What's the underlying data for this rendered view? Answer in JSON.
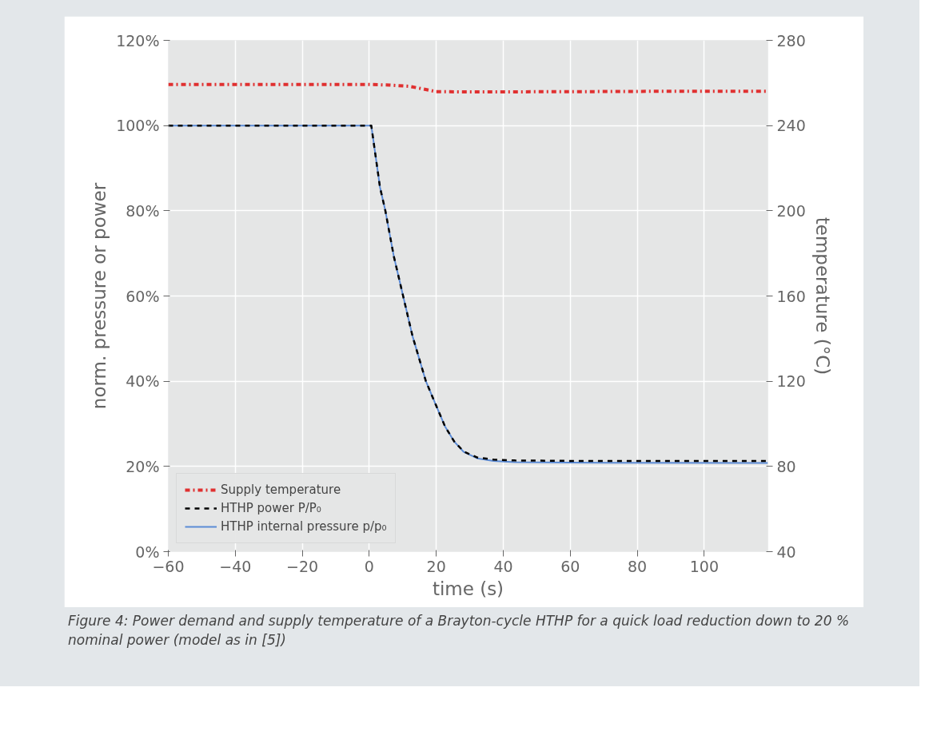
{
  "chart_data": {
    "type": "line",
    "xlabel": "time (s)",
    "ylabel": "norm. pressure or power",
    "y2label": "temperature (°C)",
    "xlim": [
      -60,
      119
    ],
    "xticks": [
      {
        "value": -60,
        "label": "−60"
      },
      {
        "value": -40,
        "label": "−40"
      },
      {
        "value": -20,
        "label": "−20"
      },
      0,
      20,
      40,
      60,
      80,
      100
    ],
    "ylim": [
      0,
      120
    ],
    "yticks": [
      {
        "value": 0,
        "label": "0%"
      },
      {
        "value": 20,
        "label": "20%"
      },
      {
        "value": 40,
        "label": "40%"
      },
      {
        "value": 60,
        "label": "60%"
      },
      {
        "value": 80,
        "label": "80%"
      },
      {
        "value": 100,
        "label": "100%"
      },
      {
        "value": 120,
        "label": "120%"
      }
    ],
    "y2lim": [
      40,
      280
    ],
    "y2ticks": [
      40,
      80,
      120,
      160,
      200,
      240,
      280
    ],
    "grid": true,
    "legend": "bottom left",
    "series": [
      {
        "name": "Supply temperature",
        "color": "#e03030",
        "line_style": "dashdot",
        "axis": "y2",
        "x": [
          -60,
          0,
          6,
          12,
          16,
          20,
          30,
          60,
          90,
          119
        ],
        "values": [
          259.3,
          259.3,
          259.0,
          258.4,
          257.2,
          255.9,
          255.8,
          255.9,
          256.1,
          256.1
        ]
      },
      {
        "name": "HTHP power P/P₀",
        "color": "#000000",
        "line_style": "dashed",
        "x": [
          -60,
          0.6,
          3.2,
          4.8,
          7.3,
          10.1,
          12.9,
          16.9,
          20,
          22.6,
          25.4,
          28.2,
          32.2,
          37.1,
          43.5,
          60,
          119
        ],
        "values": [
          100,
          100,
          85.5,
          80,
          69.4,
          60,
          50.6,
          40,
          34.2,
          29.4,
          25.8,
          23.5,
          22.1,
          21.6,
          21.4,
          21.3,
          21.3
        ]
      },
      {
        "name": "HTHP internal pressure p/p₀",
        "color": "#5b8bd6",
        "line_style": "solid",
        "x": [
          -60,
          0.6,
          3.2,
          4.8,
          7.3,
          10.1,
          12.9,
          16.9,
          20,
          22.6,
          25.4,
          28.2,
          32.2,
          37.1,
          43.5,
          60,
          119
        ],
        "values": [
          100,
          100,
          85.5,
          80,
          69.4,
          60,
          50.6,
          40,
          34.2,
          29.4,
          25.8,
          23.4,
          21.9,
          21.3,
          21.0,
          20.9,
          20.8
        ]
      }
    ],
    "annotations": [
      "Figure 4: Power demand and supply temperature of a Brayton-cycle HTHP for a quick load reduction down to 20 % nominal power (model as in [5])"
    ]
  }
}
